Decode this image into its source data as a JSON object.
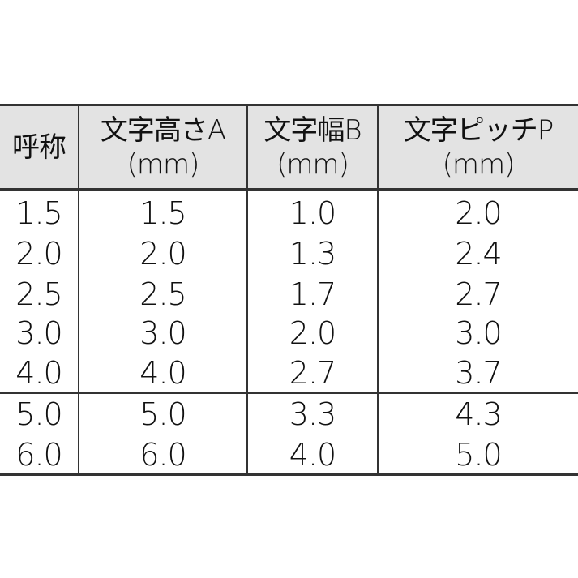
{
  "table": {
    "headers": [
      {
        "line1": "呼称",
        "line2": ""
      },
      {
        "line1": "文字高さA",
        "line2": "(mm)"
      },
      {
        "line1": "文字幅B",
        "line2": "(mm)"
      },
      {
        "line1": "文字ピッチP",
        "line2": "(mm)"
      }
    ],
    "rows": [
      [
        "1.5",
        "1.5",
        "1.0",
        "2.0"
      ],
      [
        "2.0",
        "2.0",
        "1.3",
        "2.4"
      ],
      [
        "2.5",
        "2.5",
        "1.7",
        "2.7"
      ],
      [
        "3.0",
        "3.0",
        "2.0",
        "3.0"
      ],
      [
        "4.0",
        "4.0",
        "2.7",
        "3.7"
      ],
      [
        "5.0",
        "5.0",
        "3.3",
        "4.3"
      ],
      [
        "6.0",
        "6.0",
        "4.0",
        "5.0"
      ]
    ]
  }
}
